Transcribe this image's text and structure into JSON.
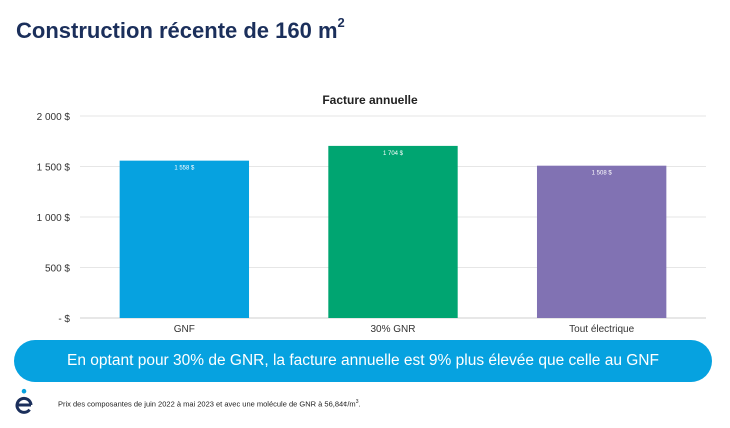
{
  "page": {
    "title": "Construction récente de 160 m",
    "title_sup": "2",
    "callout": "En optant pour 30% de GNR, la facture annuelle est 9% plus élevée que celle au GNF",
    "footnote": "Prix des composantes de juin 2022 à mai 2023 et avec une molécule de GNR à 56,84¢/m",
    "footnote_sup": "3",
    "footnote_end": ".",
    "logo_icon": "hydro-quebec-e-logo-icon",
    "colors": {
      "title": "#1b2f5b",
      "callout": "#06a2e0"
    }
  },
  "chart_data": {
    "type": "bar",
    "title": "Facture annuelle",
    "xlabel": "",
    "ylabel": "",
    "categories": [
      "GNF",
      "30% GNR",
      "Tout électrique"
    ],
    "values": [
      1558,
      1704,
      1508
    ],
    "value_labels": [
      "1 558 $",
      "1 704 $",
      "1 508 $"
    ],
    "colors": [
      "#06a2e0",
      "#00a571",
      "#8172b3"
    ],
    "ylim": [
      0,
      2000
    ],
    "yticks": [
      0,
      500,
      1000,
      1500,
      2000
    ],
    "ytick_labels": [
      "-  $",
      "500  $",
      "1 000  $",
      "1 500  $",
      "2 000  $"
    ],
    "grid": true,
    "legend": "none"
  }
}
